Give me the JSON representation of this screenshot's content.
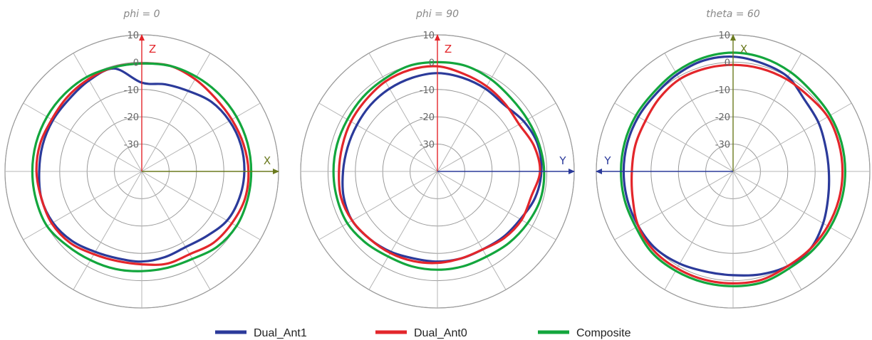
{
  "chart_data": {
    "type": "polar-line",
    "unit_note": "gain",
    "rlim": [
      -40,
      10
    ],
    "ring_ticks": [
      10,
      0,
      -10,
      -20,
      -30
    ],
    "ring_tick_labels": [
      "10",
      "0",
      "-10",
      "-20",
      "-30"
    ],
    "spokes_deg": 30,
    "colors": {
      "Dual_Ant1": "#2b3a9a",
      "Dual_Ant0": "#e3262b",
      "Composite": "#13a63d"
    },
    "legend": [
      "Dual_Ant1",
      "Dual_Ant0",
      "Composite"
    ],
    "legend_placement": "bottom-center",
    "charts": [
      {
        "title": "phi = 0",
        "axes": [
          {
            "label": "Z",
            "dir": "up",
            "color": "#e3262b"
          },
          {
            "label": "X",
            "dir": "right",
            "color": "#6b7a1f"
          }
        ],
        "angles_deg": [
          0,
          15,
          30,
          45,
          60,
          75,
          90,
          105,
          120,
          135,
          150,
          165,
          180,
          195,
          210,
          225,
          240,
          255,
          270,
          285,
          300,
          315,
          330,
          345
        ],
        "series": [
          {
            "name": "Dual_Ant1",
            "values": [
              -7.5,
              -7,
              -6,
              -4,
              -3,
              -2.5,
              -2.5,
              -3,
              -4,
              -6.5,
              -8,
              -7.5,
              -7,
              -7,
              -6,
              -4,
              -2.5,
              -2,
              -2.5,
              -2.5,
              -2.5,
              -2.5,
              -1.5,
              -1
            ]
          },
          {
            "name": "Dual_Ant0",
            "values": [
              -0.5,
              0,
              -1,
              -2,
              -2,
              -1.5,
              -1,
              -1,
              -2,
              -3,
              -5,
              -5,
              -6,
              -6,
              -5,
              -3,
              -2,
              -2,
              -1.5,
              -1.5,
              -2,
              -1.5,
              -1,
              -0.5
            ]
          },
          {
            "name": "Composite",
            "values": [
              -0.5,
              0,
              0,
              0,
              0,
              0,
              0,
              0,
              0,
              -1,
              -3,
              -3.5,
              -3.5,
              -3,
              -2.5,
              -1.5,
              0,
              0,
              0,
              0,
              0,
              0,
              0,
              -0.5
            ]
          }
        ]
      },
      {
        "title": "phi = 90",
        "axes": [
          {
            "label": "Z",
            "dir": "up",
            "color": "#e3262b"
          },
          {
            "label": "Y",
            "dir": "right",
            "color": "#2b3a9a"
          }
        ],
        "angles_deg": [
          0,
          15,
          30,
          45,
          60,
          75,
          90,
          105,
          120,
          135,
          150,
          165,
          180,
          195,
          210,
          225,
          240,
          255,
          270,
          285,
          300,
          315,
          330,
          345
        ],
        "series": [
          {
            "name": "Dual_Ant1",
            "values": [
              -4,
              -4.5,
              -5,
              -5.5,
              -3.5,
              -2,
              -2,
              -3,
              -5,
              -6,
              -7,
              -7,
              -7,
              -7,
              -6,
              -5,
              -4,
              -4.5,
              -5.5,
              -6,
              -6,
              -5.5,
              -5,
              -4.5
            ]
          },
          {
            "name": "Dual_Ant0",
            "values": [
              -1.5,
              -3,
              -4,
              -5,
              -5.5,
              -3.5,
              -2.5,
              -4.5,
              -4.5,
              -5.5,
              -7,
              -7,
              -6.5,
              -6,
              -5.5,
              -5,
              -4,
              -3.5,
              -4,
              -4,
              -3.5,
              -3,
              -2,
              -1.5
            ]
          },
          {
            "name": "Composite",
            "values": [
              0,
              0,
              -1,
              -2,
              -2,
              -1.5,
              -1,
              -1,
              -2,
              -3,
              -4,
              -4,
              -4,
              -4,
              -4,
              -3,
              -2,
              -2,
              -2,
              -2,
              -2,
              -1.5,
              -1,
              0
            ]
          }
        ]
      },
      {
        "title": "theta = 60",
        "axes": [
          {
            "label": "X",
            "dir": "up",
            "color": "#6b7a1f"
          },
          {
            "label": "Y",
            "dir": "left",
            "color": "#2b3a9a"
          }
        ],
        "angles_deg": [
          0,
          15,
          30,
          45,
          60,
          75,
          90,
          105,
          120,
          135,
          150,
          165,
          180,
          195,
          210,
          225,
          240,
          255,
          270,
          285,
          300,
          315,
          330,
          345
        ],
        "series": [
          {
            "name": "Dual_Ant1",
            "values": [
              2,
              1,
              0,
              -3,
              -4,
              -5,
              -5,
              -4,
              -2,
              0,
              0,
              -1,
              -2,
              -2,
              -1,
              0,
              0,
              0,
              0,
              0,
              0,
              0,
              1,
              2
            ]
          },
          {
            "name": "Dual_Ant0",
            "values": [
              -1,
              -1,
              -1,
              -1,
              0,
              0,
              0,
              0,
              0,
              0,
              0,
              1,
              1,
              1,
              1,
              1,
              0,
              -2,
              -3,
              -3,
              -3,
              -2,
              -1,
              -1
            ]
          },
          {
            "name": "Composite",
            "values": [
              3.5,
              3,
              2,
              1,
              1,
              1,
              1,
              1,
              1,
              1,
              1,
              2,
              2,
              2,
              2,
              2,
              1,
              1,
              1,
              1,
              1,
              1,
              2,
              3
            ]
          }
        ]
      }
    ]
  }
}
